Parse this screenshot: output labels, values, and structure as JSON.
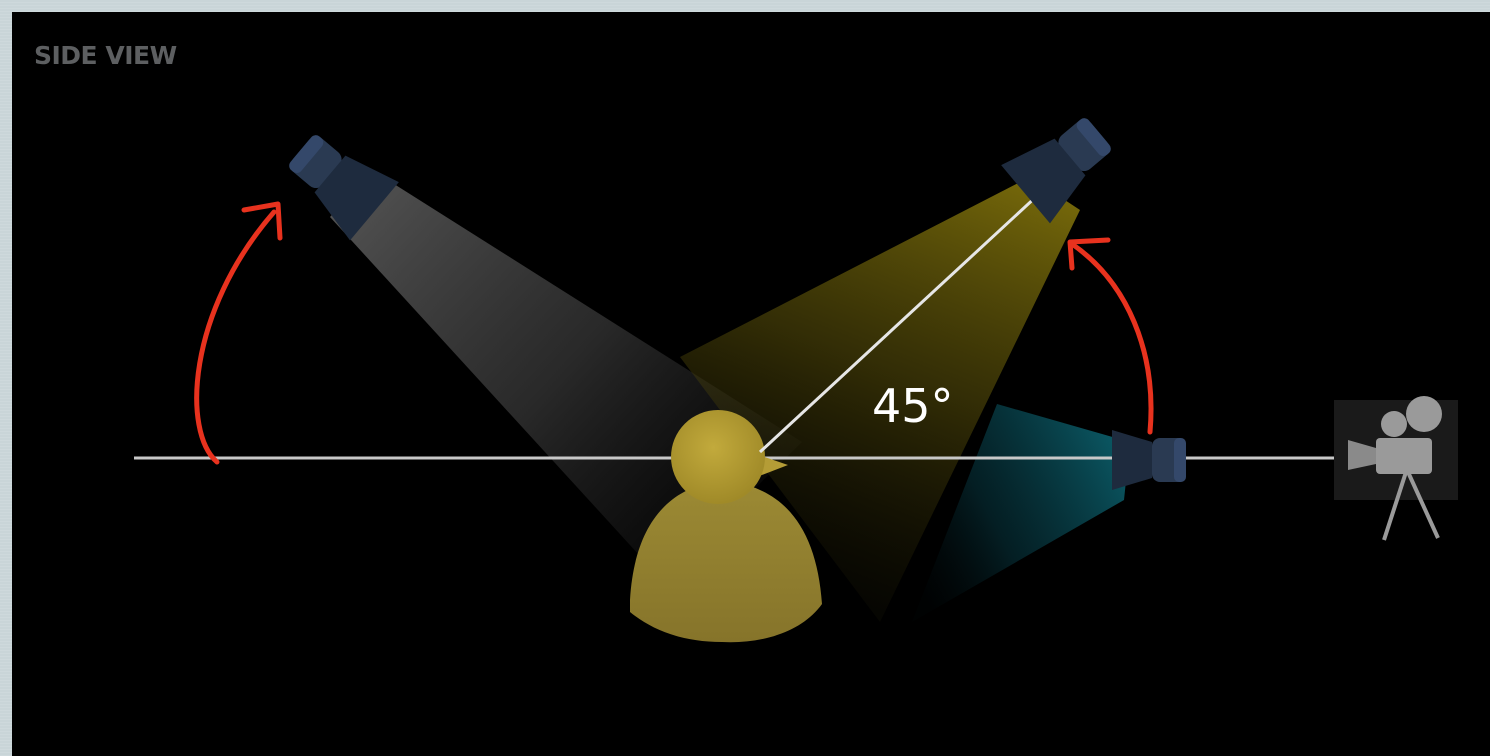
{
  "panel": {
    "view_label": "SIDE VIEW"
  },
  "diagram": {
    "angle_label": "45°",
    "elements": {
      "back_light": "light-fixture",
      "key_light": "light-fixture",
      "fill_light": "light-fixture",
      "subject": "person-silhouette",
      "camera": "movie-camera-icon"
    },
    "colors": {
      "background": "#000000",
      "beam_back": "#6a6a6a",
      "beam_key": "#8a7a10",
      "beam_fill": "#0d5a6a",
      "subject": "#a89232",
      "fixture": "#2b3d55",
      "annotation_arrow": "#e8321e",
      "guide_line": "#c8c8c8",
      "camera_icon": "#9a9a9a"
    }
  }
}
